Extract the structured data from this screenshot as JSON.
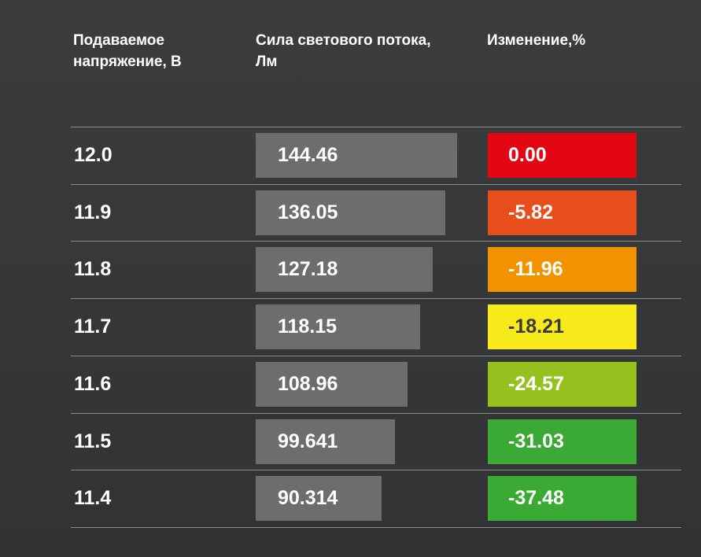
{
  "chart_data": {
    "type": "table",
    "columns": [
      "Подаваемое напряжение, В",
      "Сила светового потока, Лм",
      "Изменение,%"
    ],
    "rows": [
      {
        "voltage": "12.0",
        "flux": 144.46,
        "flux_label": "144.46",
        "change": "0.00",
        "color": "#e30613"
      },
      {
        "voltage": "11.9",
        "flux": 136.05,
        "flux_label": "136.05",
        "change": "-5.82",
        "color": "#e84e1b"
      },
      {
        "voltage": "11.8",
        "flux": 127.18,
        "flux_label": "127.18",
        "change": "-11.96",
        "color": "#f39200"
      },
      {
        "voltage": "11.7",
        "flux": 118.15,
        "flux_label": "118.15",
        "change": "-18.21",
        "color": "#f7ea1a"
      },
      {
        "voltage": "11.6",
        "flux": 108.96,
        "flux_label": "108.96",
        "change": "-24.57",
        "color": "#95c11f"
      },
      {
        "voltage": "11.5",
        "flux": 99.641,
        "flux_label": "99.641",
        "change": "-31.03",
        "color": "#3aaa35"
      },
      {
        "voltage": "11.4",
        "flux": 90.314,
        "flux_label": "90.314",
        "change": "-37.48",
        "color": "#3aaa35"
      }
    ],
    "bar_color": "#6d6d6d"
  }
}
